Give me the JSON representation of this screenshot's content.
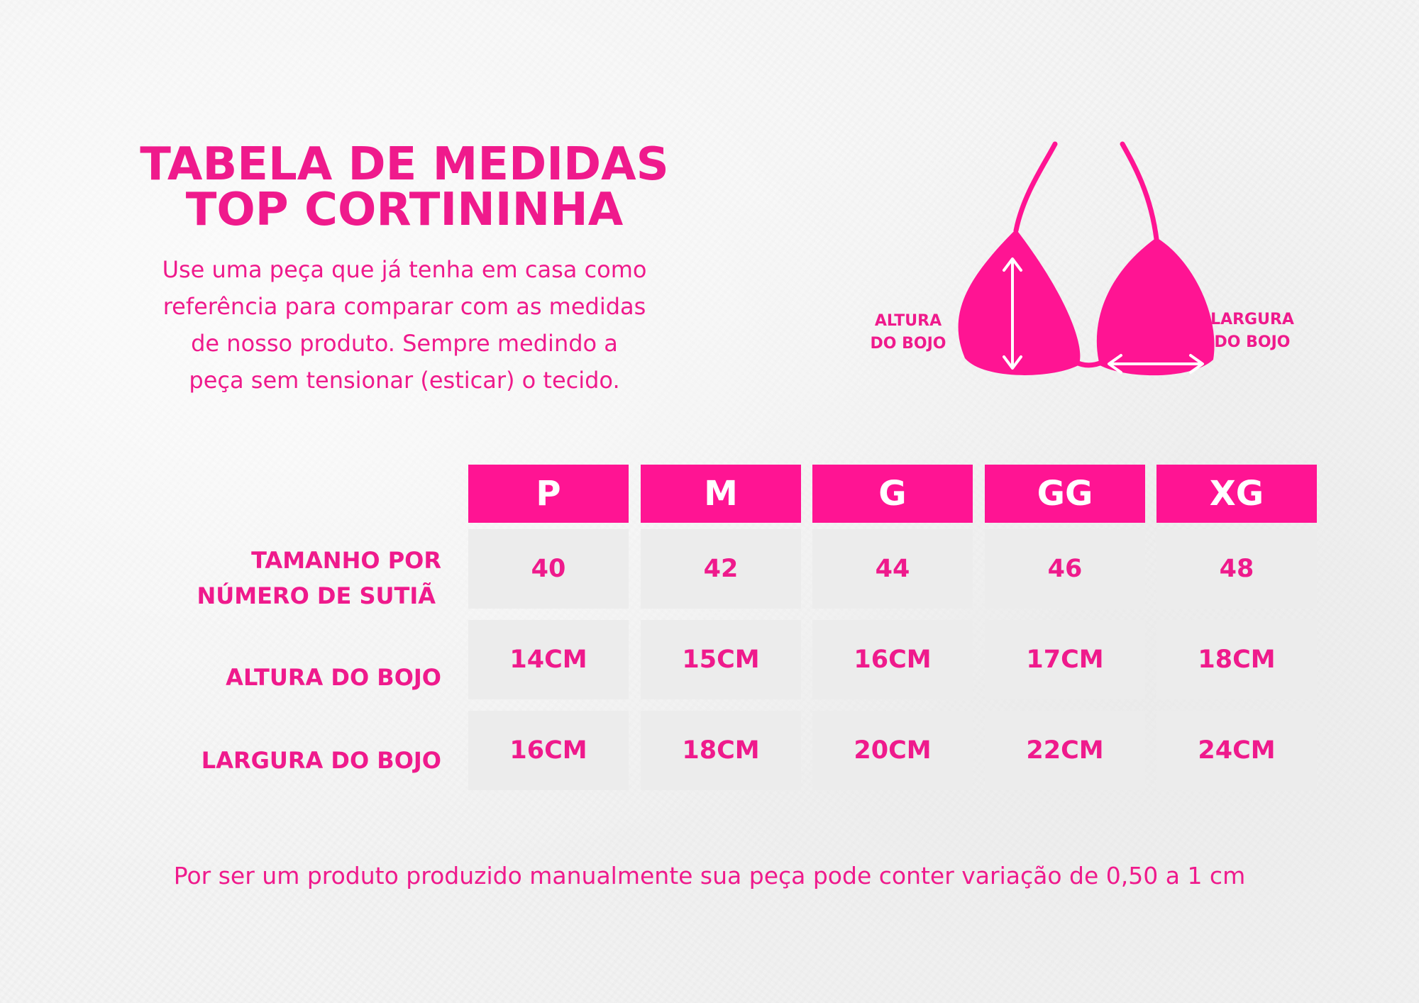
{
  "title": {
    "line1": "TABELA DE MEDIDAS",
    "line2": "TOP CORTININHA"
  },
  "intro": {
    "lines": [
      "Use uma peça que já tenha em casa como",
      "referência para comparar com as medidas",
      "de nosso produto. Sempre medindo a",
      "peça sem tensionar (esticar) o tecido."
    ]
  },
  "diagram": {
    "icon": "bikini-top-icon",
    "left_label": [
      "ALTURA",
      "DO BOJO"
    ],
    "right_label": [
      "LARGURA",
      "DO BOJO"
    ],
    "color": "#ff1493"
  },
  "table": {
    "sizes": [
      "P",
      "M",
      "G",
      "GG",
      "XG"
    ],
    "rows": [
      {
        "label": [
          "TAMANHO POR",
          "NÚMERO DE SUTIÃ"
        ],
        "values": [
          "40",
          "42",
          "44",
          "46",
          "48"
        ]
      },
      {
        "label": [
          "ALTURA DO BOJO"
        ],
        "values": [
          "14CM",
          "15CM",
          "16CM",
          "17CM",
          "18CM"
        ]
      },
      {
        "label": [
          "LARGURA DO BOJO"
        ],
        "values": [
          "16CM",
          "18CM",
          "20CM",
          "22CM",
          "24CM"
        ]
      }
    ],
    "header_color": "#ff1493",
    "cell_color": "#ececec"
  },
  "footer": "Por ser um produto produzido manualmente sua peça pode conter variação de 0,50 a 1 cm"
}
